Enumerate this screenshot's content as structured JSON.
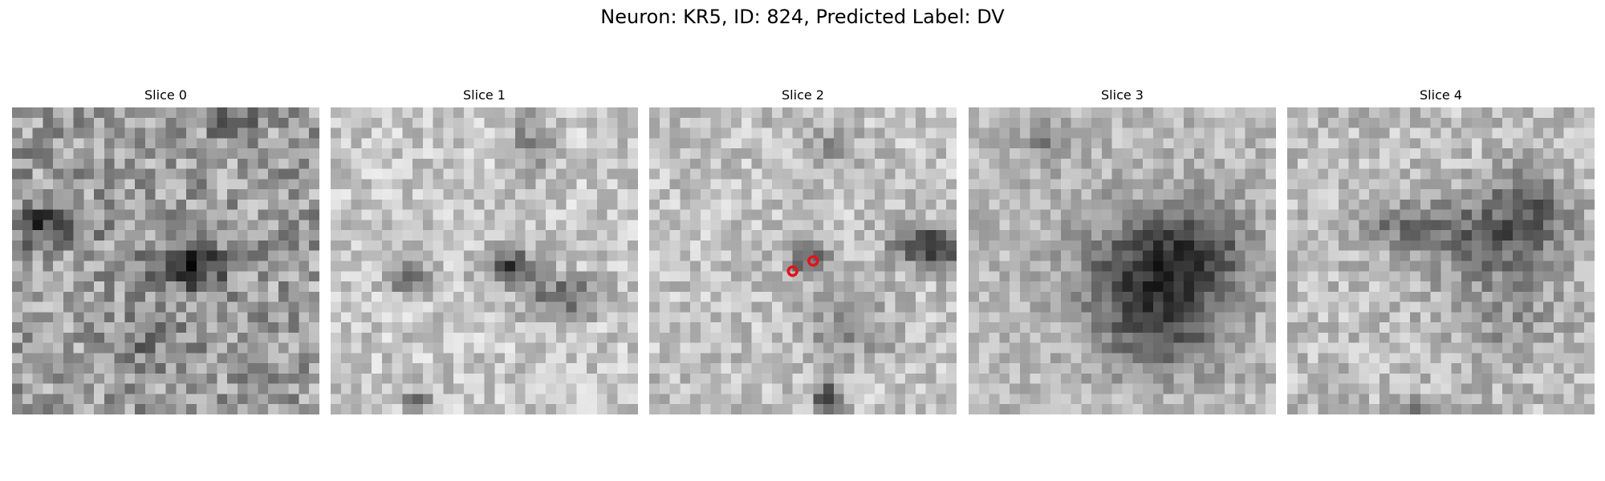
{
  "figure": {
    "title": "Neuron: KR5, ID: 824, Predicted Label: DV"
  },
  "slices": [
    {
      "title": "Slice 0"
    },
    {
      "title": "Slice 1"
    },
    {
      "title": "Slice 2"
    },
    {
      "title": "Slice 3"
    },
    {
      "title": "Slice 4"
    }
  ],
  "colors": {
    "marker": "#e0151b",
    "background": "#ffffff"
  }
}
